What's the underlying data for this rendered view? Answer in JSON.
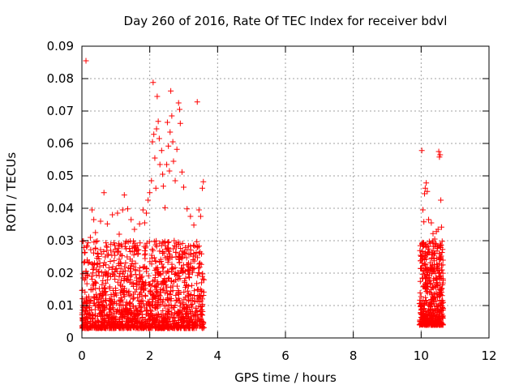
{
  "chart_data": {
    "type": "scatter",
    "title": "Day 260 of 2016, Rate Of TEC Index for receiver bdvl",
    "xlabel": "GPS time / hours",
    "ylabel": "ROTI / TECUs",
    "xlim": [
      0,
      12
    ],
    "ylim": [
      0,
      0.09
    ],
    "xticks": [
      "0",
      "2",
      "4",
      "6",
      "8",
      "10",
      "12"
    ],
    "yticks": [
      "0",
      "0.01",
      "0.02",
      "0.03",
      "0.04",
      "0.05",
      "0.06",
      "0.07",
      "0.08",
      "0.09"
    ],
    "grid": true,
    "marker": "plus",
    "color": "#ff0000",
    "series": [
      {
        "name": "ROTI",
        "points": [
          [
            0.12,
            0.0855
          ],
          [
            0.25,
            0.031
          ],
          [
            0.3,
            0.0395
          ],
          [
            0.35,
            0.0365
          ],
          [
            0.4,
            0.0325
          ],
          [
            0.55,
            0.036
          ],
          [
            0.65,
            0.0448
          ],
          [
            0.75,
            0.0352
          ],
          [
            0.9,
            0.038
          ],
          [
            1.05,
            0.0385
          ],
          [
            1.1,
            0.032
          ],
          [
            1.2,
            0.0395
          ],
          [
            1.25,
            0.0441
          ],
          [
            1.35,
            0.0398
          ],
          [
            1.45,
            0.0365
          ],
          [
            1.55,
            0.0335
          ],
          [
            1.7,
            0.0352
          ],
          [
            1.8,
            0.0395
          ],
          [
            1.85,
            0.0355
          ],
          [
            1.9,
            0.0385
          ],
          [
            1.95,
            0.0425
          ],
          [
            2.0,
            0.0448
          ],
          [
            2.05,
            0.0485
          ],
          [
            2.08,
            0.0605
          ],
          [
            2.1,
            0.0788
          ],
          [
            2.12,
            0.0628
          ],
          [
            2.15,
            0.0555
          ],
          [
            2.18,
            0.0462
          ],
          [
            2.2,
            0.0645
          ],
          [
            2.22,
            0.0745
          ],
          [
            2.25,
            0.0668
          ],
          [
            2.28,
            0.0615
          ],
          [
            2.3,
            0.0535
          ],
          [
            2.35,
            0.0578
          ],
          [
            2.38,
            0.0505
          ],
          [
            2.4,
            0.0468
          ],
          [
            2.45,
            0.0402
          ],
          [
            2.5,
            0.0535
          ],
          [
            2.52,
            0.0665
          ],
          [
            2.55,
            0.0592
          ],
          [
            2.58,
            0.0515
          ],
          [
            2.6,
            0.0635
          ],
          [
            2.62,
            0.0762
          ],
          [
            2.65,
            0.0685
          ],
          [
            2.68,
            0.0605
          ],
          [
            2.7,
            0.0545
          ],
          [
            2.75,
            0.0485
          ],
          [
            2.8,
            0.0582
          ],
          [
            2.85,
            0.0725
          ],
          [
            2.88,
            0.0705
          ],
          [
            2.9,
            0.0662
          ],
          [
            2.95,
            0.0512
          ],
          [
            3.0,
            0.0465
          ],
          [
            3.1,
            0.0398
          ],
          [
            3.2,
            0.0375
          ],
          [
            3.3,
            0.0348
          ],
          [
            3.4,
            0.0728
          ],
          [
            3.45,
            0.0395
          ],
          [
            3.5,
            0.0375
          ],
          [
            3.55,
            0.0462
          ],
          [
            3.58,
            0.0482
          ],
          [
            10.02,
            0.0578
          ],
          [
            10.05,
            0.0395
          ],
          [
            10.08,
            0.0358
          ],
          [
            10.1,
            0.0445
          ],
          [
            10.12,
            0.0462
          ],
          [
            10.15,
            0.0478
          ],
          [
            10.18,
            0.0452
          ],
          [
            10.22,
            0.0365
          ],
          [
            10.3,
            0.0355
          ],
          [
            10.35,
            0.0322
          ],
          [
            10.4,
            0.0305
          ],
          [
            10.45,
            0.0328
          ],
          [
            10.5,
            0.0335
          ],
          [
            10.52,
            0.0575
          ],
          [
            10.54,
            0.0558
          ],
          [
            10.56,
            0.0565
          ],
          [
            10.58,
            0.0425
          ],
          [
            10.6,
            0.0342
          ],
          [
            10.62,
            0.0298
          ]
        ],
        "clusters": [
          {
            "x_range": [
              0.0,
              3.6
            ],
            "y_range": [
              0.003,
              0.03
            ],
            "count": 1500
          },
          {
            "x_range": [
              9.95,
              10.65
            ],
            "y_range": [
              0.004,
              0.03
            ],
            "count": 500
          }
        ]
      }
    ]
  }
}
